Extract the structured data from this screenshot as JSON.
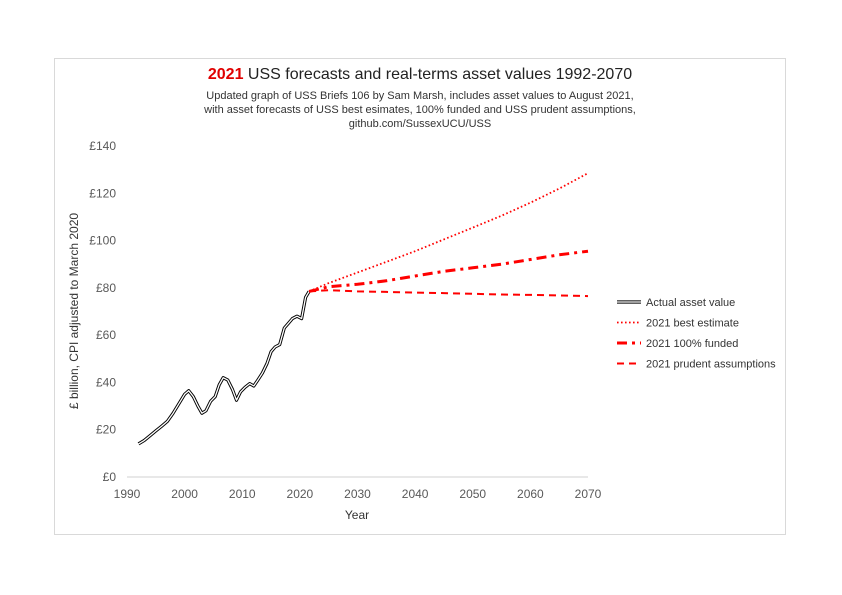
{
  "chart_data": {
    "type": "line",
    "title_year": "2021",
    "title_rest": " USS forecasts and real-terms asset values 1992-2070",
    "subtitle_lines": [
      "Updated graph of USS Briefs 106 by Sam Marsh, includes asset values to August 2021,",
      "with asset forecasts of USS best esimates, 100% funded and USS prudent assumptions,",
      "github.com/SussexUCU/USS"
    ],
    "xlabel": "Year",
    "ylabel": "£ billion,  CPI adjusted to March 2020",
    "xlim": [
      1990,
      2070
    ],
    "ylim": [
      0,
      140
    ],
    "x_ticks": [
      1990,
      2000,
      2010,
      2020,
      2030,
      2040,
      2050,
      2060,
      2070
    ],
    "x_tick_labels": [
      "1990",
      "2000",
      "2010",
      "2020",
      "2030",
      "2040",
      "2050",
      "2060",
      "2070"
    ],
    "y_ticks": [
      0,
      20,
      40,
      60,
      80,
      100,
      120,
      140
    ],
    "y_tick_labels": [
      "£0",
      "£20",
      "£40",
      "£60",
      "£80",
      "£100",
      "£120",
      "£140"
    ],
    "grid": false,
    "legend_position": "right",
    "series": [
      {
        "name": "Actual asset value",
        "color": "#000000",
        "style": "double",
        "x": [
          1992,
          1993,
          1994,
          1995,
          1996,
          1997,
          1998,
          1999,
          2000,
          2000.7,
          2001.5,
          2002.3,
          2003,
          2003.7,
          2004.5,
          2005.3,
          2006,
          2006.7,
          2007.5,
          2008.3,
          2009,
          2009.7,
          2010.5,
          2011.3,
          2012,
          2012.7,
          2013.5,
          2014.3,
          2015,
          2015.7,
          2016.5,
          2017.3,
          2018,
          2018.7,
          2019.5,
          2020.3,
          2021,
          2021.6
        ],
        "y": [
          14,
          15.5,
          17.5,
          19.5,
          21.5,
          23.5,
          27,
          31,
          35,
          36.5,
          34,
          30,
          27,
          28,
          32,
          34,
          39,
          42,
          41,
          37,
          32.5,
          36,
          38,
          39.5,
          38.5,
          41,
          44,
          48,
          53,
          55,
          56,
          63,
          65,
          67,
          68,
          67,
          76,
          78.5
        ]
      },
      {
        "name": "2021 best estimate",
        "color": "#ff0000",
        "style": "dotted",
        "x": [
          2021.6,
          2025,
          2030,
          2035,
          2040,
          2045,
          2050,
          2055,
          2060,
          2065,
          2070
        ],
        "y": [
          78.5,
          82,
          86.5,
          91,
          95.5,
          100.5,
          105.5,
          110.5,
          116,
          122,
          128.5
        ]
      },
      {
        "name": "2021 100% funded",
        "color": "#ff0000",
        "style": "dashdot",
        "x": [
          2021.6,
          2025,
          2030,
          2035,
          2040,
          2045,
          2050,
          2055,
          2060,
          2065,
          2070
        ],
        "y": [
          78.5,
          80.5,
          81.5,
          83,
          85,
          87,
          88.5,
          90,
          92,
          94,
          95.5
        ]
      },
      {
        "name": "2021 prudent assumptions",
        "color": "#ff0000",
        "style": "dashed",
        "x": [
          2021.6,
          2025,
          2030,
          2035,
          2040,
          2045,
          2050,
          2055,
          2060,
          2065,
          2070
        ],
        "y": [
          78.5,
          79,
          78.5,
          78.3,
          78,
          77.8,
          77.5,
          77.2,
          77,
          76.8,
          76.5
        ]
      }
    ]
  }
}
